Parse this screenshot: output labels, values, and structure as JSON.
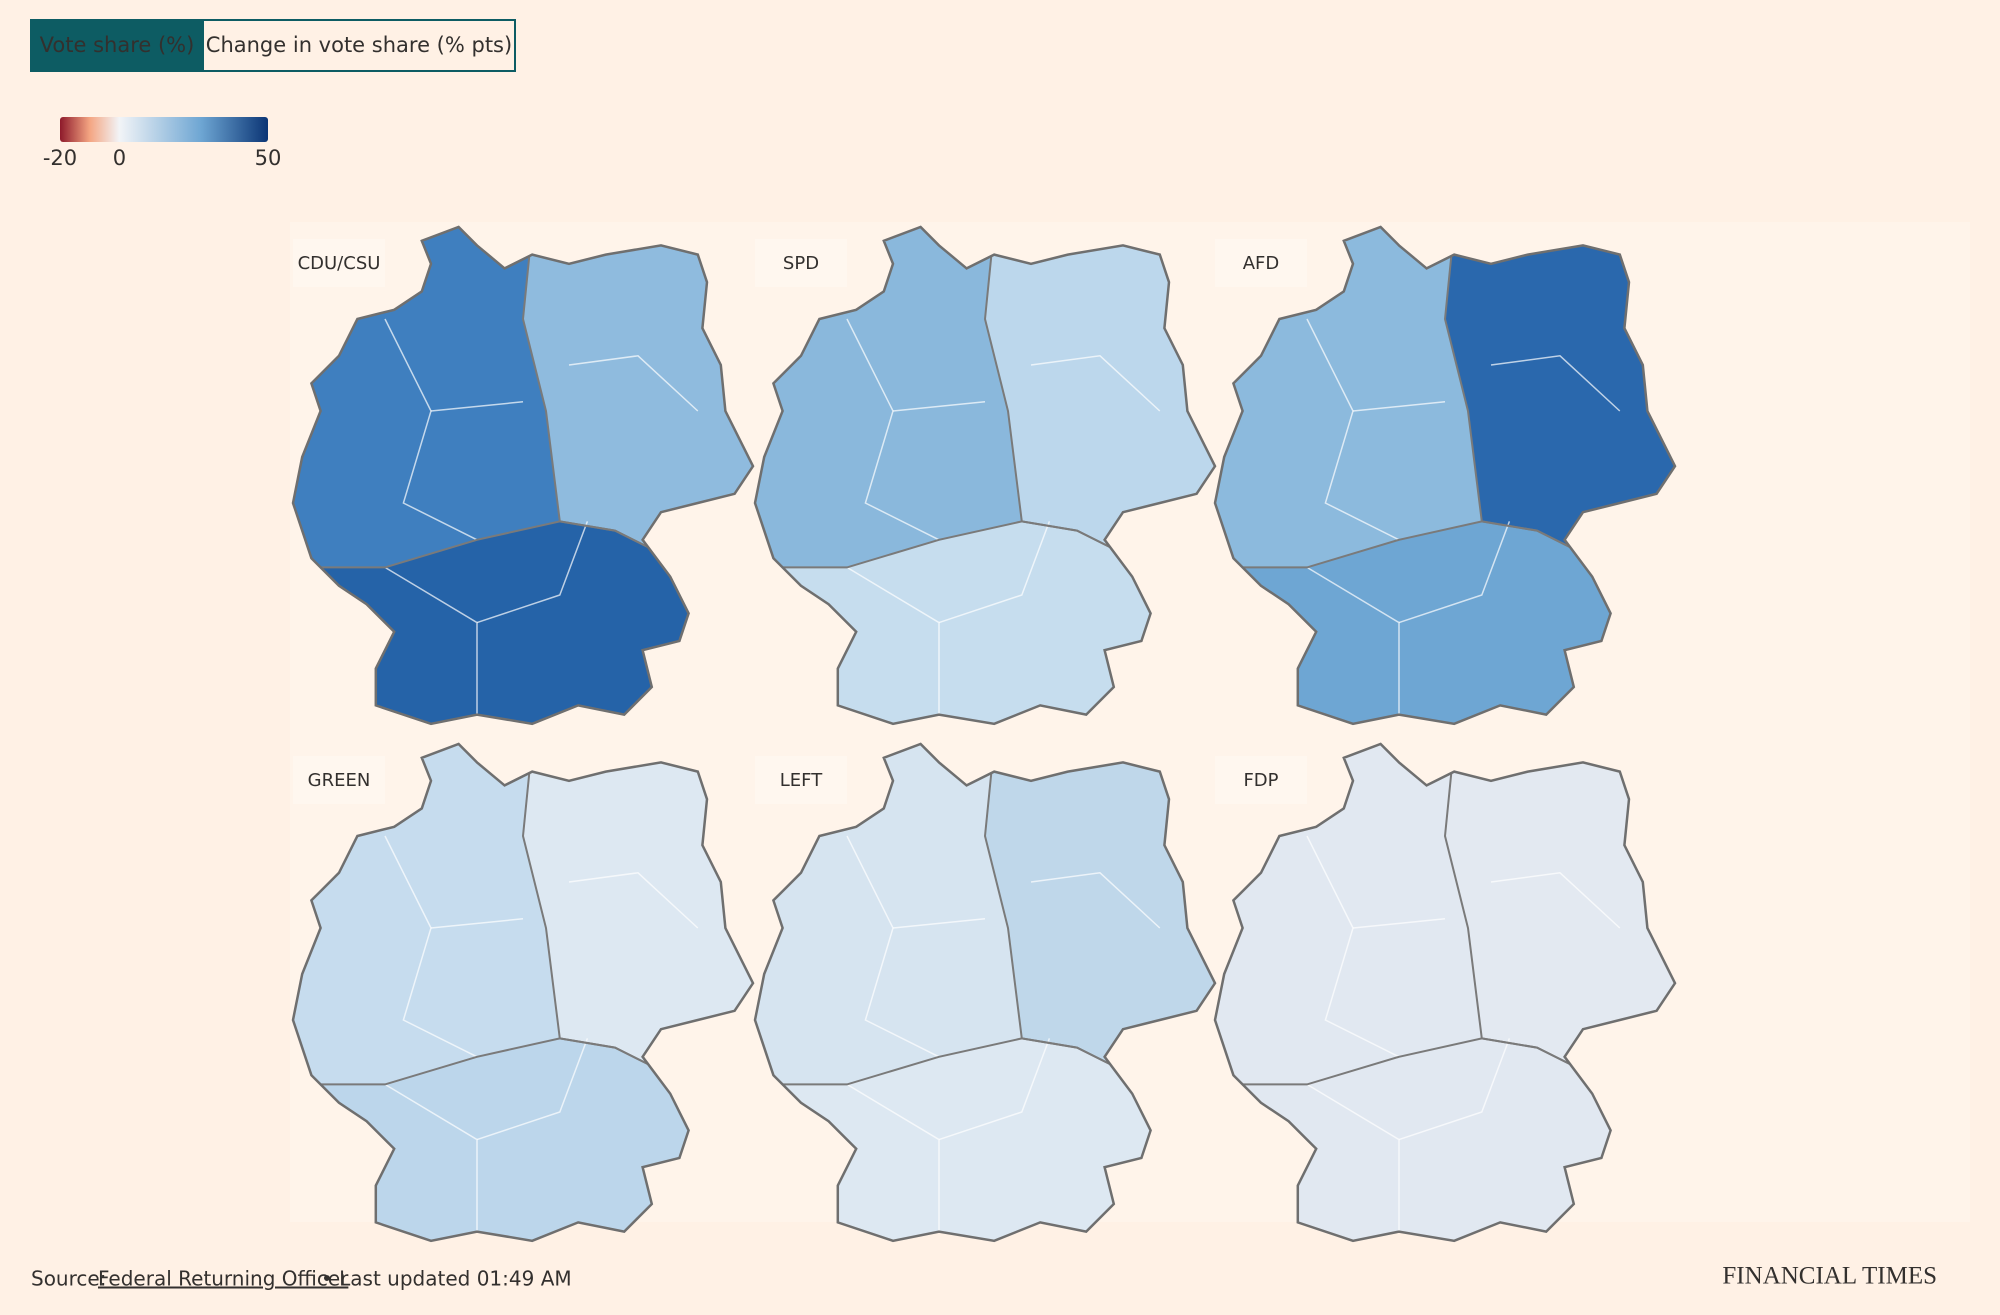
{
  "toggle": {
    "options": [
      "Vote share (%)",
      "Change in vote share (% pts)"
    ],
    "active": 0
  },
  "legend": {
    "range": [
      -20,
      50
    ],
    "ticks": [
      -20,
      0,
      50
    ],
    "colors": [
      "#8e1a2b",
      "#f4a582",
      "#f2f4f7",
      "#6ea6d3",
      "#0b3575"
    ]
  },
  "maps": [
    {
      "label": "CDU/CSU",
      "fills": [
        "#3f7fbf",
        "#8fbbde",
        "#2563a8"
      ]
    },
    {
      "label": "SPD",
      "fills": [
        "#8ab8dc",
        "#bcd7ec",
        "#c6ddee"
      ]
    },
    {
      "label": "AFD",
      "fills": [
        "#8cbadd",
        "#2a68ad",
        "#6ea6d3"
      ]
    },
    {
      "label": "GREEN",
      "fills": [
        "#c6dcee",
        "#dde8f2",
        "#bcd6eb"
      ]
    },
    {
      "label": "LEFT",
      "fills": [
        "#d6e4f0",
        "#bfd7ea",
        "#dde8f2"
      ]
    },
    {
      "label": "FDP",
      "fills": [
        "#e1e8f1",
        "#e3e9f1",
        "#e1e8f1"
      ]
    }
  ],
  "footer": {
    "source_label": "Source:",
    "source_link": "Federal Returning Officer",
    "updated": "• Last updated 01:49 AM",
    "brand": "FINANCIAL TIMES"
  }
}
